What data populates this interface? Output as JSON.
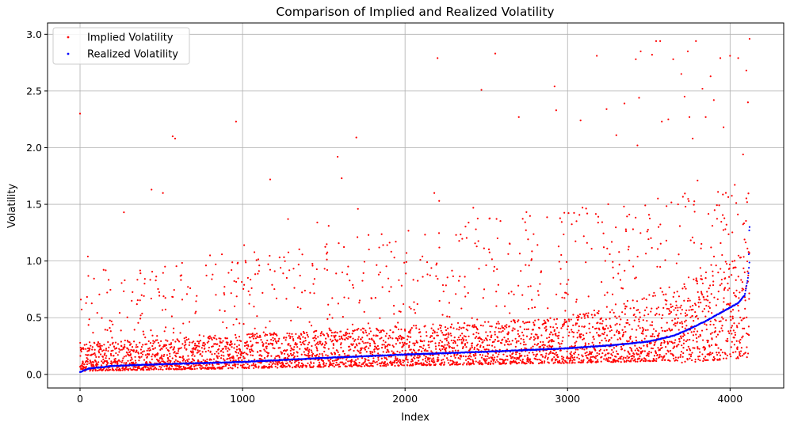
{
  "chart_data": {
    "type": "scatter",
    "title": "Comparison of Implied and Realized Volatility",
    "xlabel": "Index",
    "ylabel": "Volatility",
    "xlim": [
      -200,
      4330
    ],
    "ylim": [
      -0.12,
      3.1
    ],
    "xticks": [
      0,
      1000,
      2000,
      3000,
      4000
    ],
    "yticks": [
      0.0,
      0.5,
      1.0,
      1.5,
      2.0,
      2.5,
      3.0
    ],
    "xtick_labels": [
      "0",
      "1000",
      "2000",
      "3000",
      "4000"
    ],
    "ytick_labels": [
      "0.0",
      "0.5",
      "1.0",
      "1.5",
      "2.0",
      "2.5",
      "3.0"
    ],
    "grid": true,
    "legend_position": "upper-left",
    "n_points": 4120,
    "series": [
      {
        "name": "Implied Volatility",
        "color": "#ff0000",
        "marker": "dot",
        "points": [
          [
            0,
            2.3
          ],
          [
            5,
            0.66
          ],
          [
            48,
            1.04
          ],
          [
            270,
            1.43
          ],
          [
            275,
            0.83
          ],
          [
            440,
            1.63
          ],
          [
            510,
            1.6
          ],
          [
            570,
            2.1
          ],
          [
            585,
            2.08
          ],
          [
            960,
            2.23
          ],
          [
            1010,
            1.14
          ],
          [
            1170,
            1.72
          ],
          [
            1280,
            1.37
          ],
          [
            1460,
            1.34
          ],
          [
            1530,
            1.31
          ],
          [
            1585,
            1.92
          ],
          [
            1610,
            1.73
          ],
          [
            1700,
            2.09
          ],
          [
            1710,
            1.46
          ],
          [
            1775,
            1.23
          ],
          [
            2180,
            1.6
          ],
          [
            2200,
            2.79
          ],
          [
            2210,
            1.53
          ],
          [
            2420,
            1.47
          ],
          [
            2470,
            2.51
          ],
          [
            2555,
            2.83
          ],
          [
            2700,
            2.27
          ],
          [
            2920,
            2.54
          ],
          [
            2930,
            2.33
          ],
          [
            3080,
            2.24
          ],
          [
            3180,
            2.81
          ],
          [
            3240,
            2.34
          ],
          [
            3300,
            2.11
          ],
          [
            3350,
            2.39
          ],
          [
            3420,
            2.78
          ],
          [
            3430,
            2.02
          ],
          [
            3440,
            2.44
          ],
          [
            3450,
            2.85
          ],
          [
            3520,
            2.82
          ],
          [
            3545,
            2.94
          ],
          [
            3570,
            2.94
          ],
          [
            3580,
            2.23
          ],
          [
            3620,
            2.25
          ],
          [
            3650,
            2.78
          ],
          [
            3700,
            2.65
          ],
          [
            3720,
            2.45
          ],
          [
            3740,
            2.85
          ],
          [
            3750,
            2.27
          ],
          [
            3770,
            2.08
          ],
          [
            3790,
            2.94
          ],
          [
            3830,
            2.52
          ],
          [
            3850,
            2.27
          ],
          [
            3880,
            2.63
          ],
          [
            3900,
            2.42
          ],
          [
            3940,
            2.79
          ],
          [
            3960,
            2.18
          ],
          [
            4000,
            2.81
          ],
          [
            4050,
            2.79
          ],
          [
            4080,
            1.94
          ],
          [
            4100,
            2.68
          ],
          [
            4110,
            2.4
          ],
          [
            4120,
            2.96
          ],
          [
            3800,
            1.71
          ],
          [
            3680,
            1.5
          ],
          [
            3560,
            1.3
          ],
          [
            3490,
            1.26
          ],
          [
            3380,
            1.41
          ],
          [
            3260,
            1.06
          ],
          [
            3120,
            1.16
          ],
          [
            1010,
            0.79
          ],
          [
            800,
            1.05
          ]
        ],
        "bulk_band": {
          "segments": [
            {
              "x": [
                0,
                3000
              ],
              "low": [
                0.03,
                0.1
              ],
              "high": [
                0.28,
                0.5
              ]
            },
            {
              "x": [
                3000,
                3700
              ],
              "low": [
                0.1,
                0.12
              ],
              "high": [
                0.5,
                0.8
              ]
            },
            {
              "x": [
                3700,
                4120
              ],
              "low": [
                0.1,
                0.15
              ],
              "high": [
                0.8,
                1.1
              ]
            }
          ],
          "outlier_rate": 0.12,
          "outlier_max": [
            0.9,
            1.7
          ]
        }
      },
      {
        "name": "Realized Volatility",
        "color": "#0000ff",
        "marker": "dot",
        "curve": [
          [
            0,
            0.02
          ],
          [
            50,
            0.05
          ],
          [
            200,
            0.075
          ],
          [
            500,
            0.09
          ],
          [
            1000,
            0.11
          ],
          [
            1500,
            0.145
          ],
          [
            2000,
            0.175
          ],
          [
            2500,
            0.2
          ],
          [
            3000,
            0.23
          ],
          [
            3300,
            0.26
          ],
          [
            3500,
            0.29
          ],
          [
            3650,
            0.34
          ],
          [
            3750,
            0.4
          ],
          [
            3850,
            0.47
          ],
          [
            3950,
            0.55
          ],
          [
            4050,
            0.63
          ],
          [
            4090,
            0.7
          ],
          [
            4110,
            0.85
          ],
          [
            4120,
            1.0
          ]
        ],
        "tail_points": [
          [
            4115,
            1.06
          ],
          [
            4118,
            1.27
          ],
          [
            4120,
            1.3
          ]
        ]
      }
    ]
  }
}
